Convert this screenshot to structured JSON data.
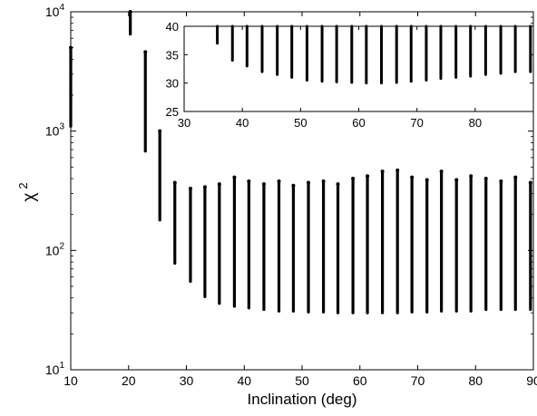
{
  "chart_data": {
    "type": "scatter",
    "xlabel": "Inclination (deg)",
    "ylabel": "χ",
    "ylabel_superscript": "2",
    "xlim": [
      10,
      90
    ],
    "ylim": [
      10,
      10000
    ],
    "yscale": "log",
    "xticks": [
      "10",
      "20",
      "30",
      "40",
      "50",
      "60",
      "70",
      "80",
      "90"
    ],
    "yticks": [
      {
        "base": "10",
        "exp": "1"
      },
      {
        "base": "10",
        "exp": "2"
      },
      {
        "base": "10",
        "exp": "3"
      },
      {
        "base": "10",
        "exp": "4"
      }
    ],
    "grid": false,
    "marker_color": "#000000",
    "columns": [
      {
        "x": 10.0,
        "ymin": 1100,
        "ymax": 5000
      },
      {
        "x": 20.3,
        "ymin": 6500,
        "ymax": 10000
      },
      {
        "x": 22.9,
        "ymin": 680,
        "ymax": 4600
      },
      {
        "x": 25.4,
        "ymin": 180,
        "ymax": 1000
      },
      {
        "x": 28.0,
        "ymin": 78,
        "ymax": 370
      },
      {
        "x": 30.7,
        "ymin": 55,
        "ymax": 330
      },
      {
        "x": 33.2,
        "ymin": 41,
        "ymax": 340
      },
      {
        "x": 35.7,
        "ymin": 36,
        "ymax": 360
      },
      {
        "x": 38.3,
        "ymin": 34,
        "ymax": 410
      },
      {
        "x": 40.8,
        "ymin": 33,
        "ymax": 380
      },
      {
        "x": 43.4,
        "ymin": 32,
        "ymax": 360
      },
      {
        "x": 46.0,
        "ymin": 31,
        "ymax": 380
      },
      {
        "x": 48.5,
        "ymin": 31,
        "ymax": 350
      },
      {
        "x": 51.1,
        "ymin": 30.5,
        "ymax": 370
      },
      {
        "x": 53.7,
        "ymin": 30.5,
        "ymax": 380
      },
      {
        "x": 56.2,
        "ymin": 30,
        "ymax": 360
      },
      {
        "x": 58.8,
        "ymin": 30,
        "ymax": 400
      },
      {
        "x": 61.3,
        "ymin": 30,
        "ymax": 420
      },
      {
        "x": 63.9,
        "ymin": 30,
        "ymax": 460
      },
      {
        "x": 66.5,
        "ymin": 30,
        "ymax": 470
      },
      {
        "x": 69.0,
        "ymin": 30.5,
        "ymax": 410
      },
      {
        "x": 71.6,
        "ymin": 30.5,
        "ymax": 390
      },
      {
        "x": 74.1,
        "ymin": 31,
        "ymax": 460
      },
      {
        "x": 76.7,
        "ymin": 31,
        "ymax": 390
      },
      {
        "x": 79.2,
        "ymin": 31,
        "ymax": 420
      },
      {
        "x": 81.8,
        "ymin": 32,
        "ymax": 400
      },
      {
        "x": 84.4,
        "ymin": 32,
        "ymax": 380
      },
      {
        "x": 86.9,
        "ymin": 32,
        "ymax": 410
      },
      {
        "x": 89.5,
        "ymin": 32,
        "ymax": 370
      }
    ],
    "inset": {
      "type": "scatter",
      "xlim": [
        30,
        90
      ],
      "ylim": [
        25,
        40
      ],
      "yscale": "linear",
      "xticks": [
        "30",
        "40",
        "50",
        "60",
        "70",
        "80"
      ],
      "yticks": [
        "25",
        "30",
        "35",
        "40"
      ],
      "columns": [
        {
          "x": 35.7,
          "ymin": 37.0,
          "ymax": 40
        },
        {
          "x": 38.3,
          "ymin": 34.0,
          "ymax": 40
        },
        {
          "x": 40.8,
          "ymin": 33.0,
          "ymax": 40
        },
        {
          "x": 43.4,
          "ymin": 32.0,
          "ymax": 40
        },
        {
          "x": 46.0,
          "ymin": 31.5,
          "ymax": 40
        },
        {
          "x": 48.5,
          "ymin": 31.0,
          "ymax": 40
        },
        {
          "x": 51.1,
          "ymin": 30.5,
          "ymax": 40
        },
        {
          "x": 53.7,
          "ymin": 30.3,
          "ymax": 40
        },
        {
          "x": 56.2,
          "ymin": 30.2,
          "ymax": 40
        },
        {
          "x": 58.8,
          "ymin": 30.1,
          "ymax": 40
        },
        {
          "x": 61.3,
          "ymin": 30.0,
          "ymax": 40
        },
        {
          "x": 63.9,
          "ymin": 30.0,
          "ymax": 40
        },
        {
          "x": 66.5,
          "ymin": 30.1,
          "ymax": 40
        },
        {
          "x": 69.0,
          "ymin": 30.3,
          "ymax": 40
        },
        {
          "x": 71.6,
          "ymin": 30.5,
          "ymax": 40
        },
        {
          "x": 74.1,
          "ymin": 30.8,
          "ymax": 40
        },
        {
          "x": 76.7,
          "ymin": 31.0,
          "ymax": 40
        },
        {
          "x": 79.2,
          "ymin": 31.2,
          "ymax": 40
        },
        {
          "x": 81.8,
          "ymin": 31.5,
          "ymax": 40
        },
        {
          "x": 84.4,
          "ymin": 31.7,
          "ymax": 40
        },
        {
          "x": 86.9,
          "ymin": 32.0,
          "ymax": 40
        },
        {
          "x": 89.5,
          "ymin": 32.0,
          "ymax": 40
        }
      ]
    }
  }
}
